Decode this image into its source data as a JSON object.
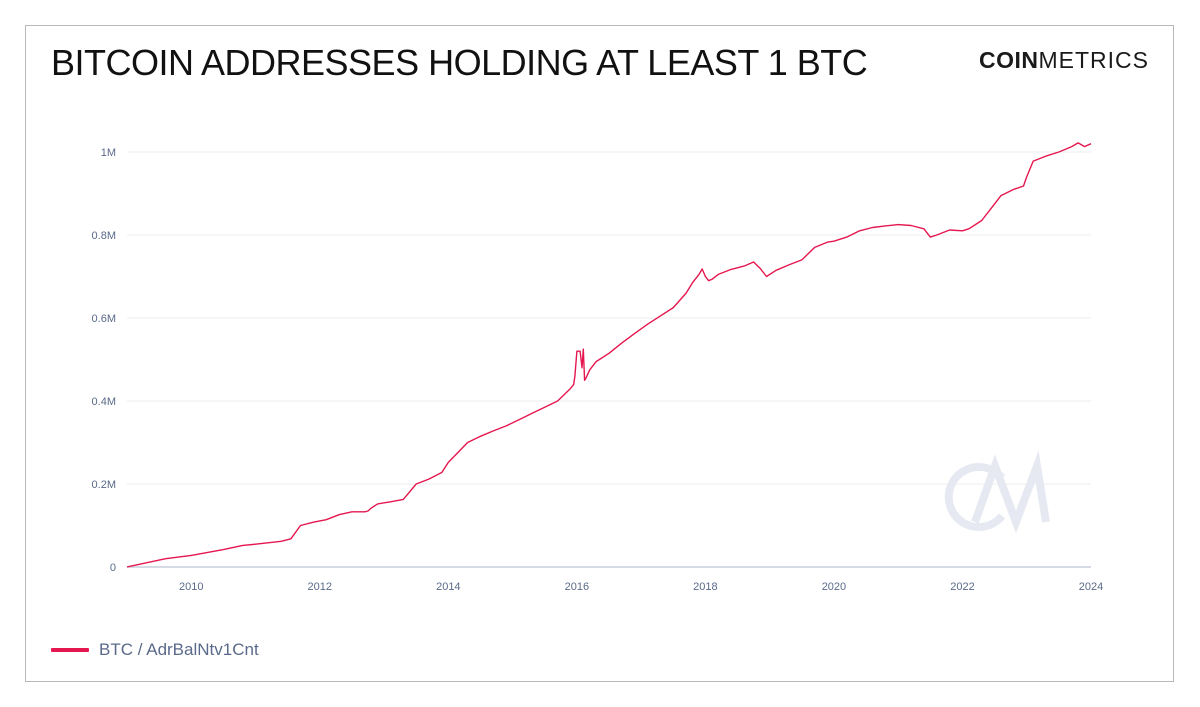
{
  "header": {
    "title": "BITCOIN ADDRESSES HOLDING AT LEAST 1 BTC",
    "brand_bold": "COIN",
    "brand_thin": "METRICS"
  },
  "colors": {
    "series": "#e5174f",
    "axis_text": "#5a6a8a",
    "grid": "#eeeeee",
    "watermark": "#e6e9f1"
  },
  "chart_data": {
    "type": "line",
    "title": "BITCOIN ADDRESSES HOLDING AT LEAST 1 BTC",
    "xlabel": "",
    "ylabel": "",
    "xlim": [
      2009.0,
      2024.0
    ],
    "ylim": [
      0,
      1050000
    ],
    "x_ticks": [
      2010,
      2012,
      2014,
      2016,
      2018,
      2020,
      2022,
      2024
    ],
    "x_tick_labels": [
      "2010",
      "2012",
      "2014",
      "2016",
      "2018",
      "2020",
      "2022",
      "2024"
    ],
    "y_ticks": [
      0,
      200000,
      400000,
      600000,
      800000,
      1000000
    ],
    "y_tick_labels": [
      "0",
      "0.2M",
      "0.4M",
      "0.6M",
      "0.8M",
      "1M"
    ],
    "grid": true,
    "legend_position": "bottom-left",
    "watermark": "CM",
    "series": [
      {
        "name": "BTC / AdrBalNtv1Cnt",
        "x": [
          2009.0,
          2009.6,
          2010.0,
          2010.5,
          2010.8,
          2011.0,
          2011.4,
          2011.55,
          2011.7,
          2011.9,
          2012.1,
          2012.3,
          2012.5,
          2012.7,
          2012.75,
          2012.8,
          2012.9,
          2013.1,
          2013.3,
          2013.5,
          2013.7,
          2013.9,
          2014.0,
          2014.1,
          2014.2,
          2014.3,
          2014.5,
          2014.7,
          2014.9,
          2015.1,
          2015.3,
          2015.5,
          2015.7,
          2015.9,
          2015.95,
          2015.97,
          2016.0,
          2016.05,
          2016.08,
          2016.1,
          2016.12,
          2016.14,
          2016.2,
          2016.3,
          2016.5,
          2016.7,
          2016.9,
          2017.1,
          2017.3,
          2017.5,
          2017.7,
          2017.8,
          2017.9,
          2017.95,
          2018.0,
          2018.05,
          2018.1,
          2018.2,
          2018.4,
          2018.6,
          2018.75,
          2018.85,
          2018.95,
          2019.1,
          2019.3,
          2019.5,
          2019.7,
          2019.9,
          2020.0,
          2020.2,
          2020.4,
          2020.6,
          2020.8,
          2021.0,
          2021.2,
          2021.4,
          2021.5,
          2021.6,
          2021.8,
          2022.0,
          2022.1,
          2022.3,
          2022.5,
          2022.6,
          2022.8,
          2022.95,
          2023.0,
          2023.1,
          2023.3,
          2023.5,
          2023.7,
          2023.8,
          2023.9,
          2024.0
        ],
        "values": [
          0,
          20000,
          28000,
          42000,
          52000,
          55000,
          62000,
          68000,
          100000,
          108000,
          114000,
          126000,
          133000,
          133000,
          135000,
          142000,
          152000,
          157000,
          163000,
          200000,
          212000,
          228000,
          252000,
          268000,
          284000,
          300000,
          315000,
          328000,
          340000,
          355000,
          370000,
          385000,
          400000,
          430000,
          440000,
          460000,
          520000,
          520000,
          480000,
          525000,
          450000,
          455000,
          475000,
          495000,
          515000,
          540000,
          563000,
          585000,
          605000,
          625000,
          660000,
          685000,
          705000,
          718000,
          700000,
          690000,
          693000,
          705000,
          717000,
          725000,
          735000,
          720000,
          700000,
          715000,
          728000,
          740000,
          770000,
          783000,
          785000,
          795000,
          810000,
          818000,
          822000,
          825000,
          823000,
          815000,
          795000,
          800000,
          812000,
          810000,
          815000,
          835000,
          875000,
          895000,
          910000,
          918000,
          940000,
          978000,
          990000,
          1000000,
          1013000,
          1022000,
          1013000,
          1020000
        ]
      }
    ]
  }
}
